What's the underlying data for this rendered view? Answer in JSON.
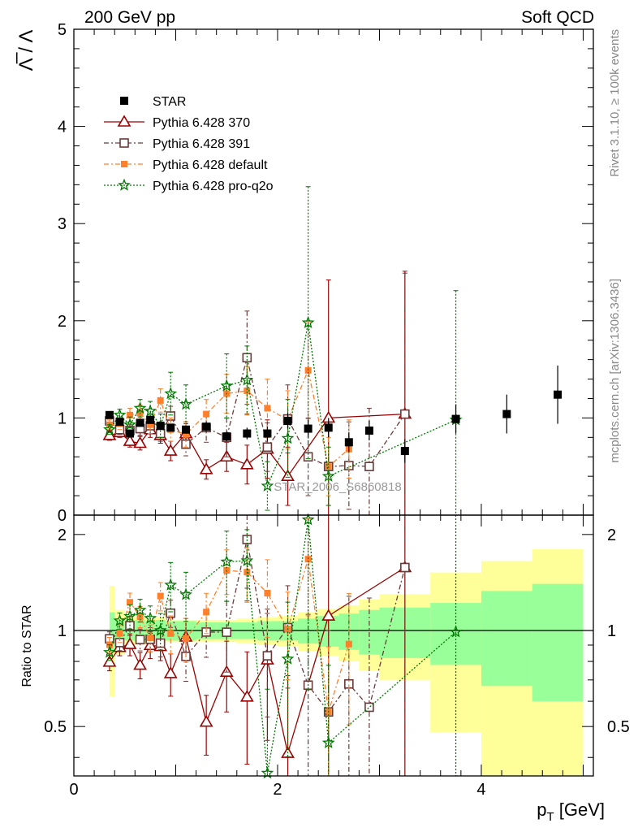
{
  "header": {
    "left_title": "200 GeV pp",
    "right_title": "Soft QCD",
    "side_label_top": "Rivet 3.1.10, ≥ 100k events",
    "side_label_bottom": "mcplots.cern.ch [arXiv:1306.3436]",
    "watermark": "STAR_2006_S6860818"
  },
  "chart_data": {
    "type": "scatter",
    "title": "",
    "ylabel": "Λ̅ / Λ",
    "xlabel": "p_T [GeV]",
    "xlim": [
      0,
      5.1
    ],
    "ylim": [
      0,
      5
    ],
    "x_ticks": [
      "0",
      "2",
      "4"
    ],
    "y_ticks": [
      "0",
      "1",
      "2",
      "3",
      "4",
      "5"
    ],
    "ratio": {
      "ylabel": "Ratio to STAR",
      "ylim": [
        0.35,
        2.3
      ],
      "y_ticks": [
        "0.5",
        "1",
        "2"
      ],
      "band_edges": [
        0.35,
        0.4,
        0.5,
        0.6,
        0.7,
        0.8,
        0.9,
        1.0,
        1.2,
        1.4,
        1.6,
        1.8,
        2.0,
        2.2,
        2.4,
        2.6,
        2.8,
        3.0,
        3.5,
        4.0,
        4.5,
        5.0
      ],
      "band_inner": [
        0.14,
        0.08,
        0.07,
        0.08,
        0.07,
        0.08,
        0.07,
        0.07,
        0.06,
        0.06,
        0.06,
        0.07,
        0.07,
        0.09,
        0.11,
        0.13,
        0.16,
        0.18,
        0.22,
        0.33,
        0.4
      ],
      "band_outer": [
        0.38,
        0.16,
        0.12,
        0.1,
        0.09,
        0.1,
        0.08,
        0.08,
        0.08,
        0.08,
        0.09,
        0.1,
        0.11,
        0.14,
        0.17,
        0.2,
        0.25,
        0.3,
        0.52,
        0.65,
        0.8
      ]
    },
    "series": [
      {
        "name": "STAR",
        "style": "data",
        "color": "#000000",
        "x": [
          0.35,
          0.45,
          0.55,
          0.65,
          0.75,
          0.85,
          0.95,
          1.1,
          1.3,
          1.5,
          1.7,
          1.9,
          2.1,
          2.3,
          2.5,
          2.7,
          2.9,
          3.25,
          3.75,
          4.25,
          4.75
        ],
        "y": [
          1.03,
          0.96,
          0.84,
          0.95,
          0.98,
          0.92,
          0.9,
          0.88,
          0.91,
          0.81,
          0.84,
          0.84,
          0.97,
          0.89,
          0.9,
          0.75,
          0.87,
          0.66,
          0.99,
          1.04,
          1.24
        ],
        "err": [
          0.03,
          0.03,
          0.03,
          0.03,
          0.03,
          0.04,
          0.04,
          0.04,
          0.05,
          0.05,
          0.06,
          0.07,
          0.08,
          0.09,
          0.1,
          0.1,
          0.1,
          0.12,
          0.15,
          0.2,
          0.3
        ]
      },
      {
        "name": "Pythia 6.428 370",
        "style": "tri",
        "color": "#990000",
        "dash": "",
        "x": [
          0.35,
          0.45,
          0.55,
          0.65,
          0.75,
          0.85,
          0.95,
          1.1,
          1.3,
          1.5,
          1.7,
          1.9,
          2.1,
          2.5,
          3.25
        ],
        "y": [
          0.82,
          0.85,
          0.76,
          0.74,
          0.88,
          0.82,
          0.66,
          0.84,
          0.47,
          0.6,
          0.52,
          0.68,
          0.4,
          1.0,
          1.04
        ],
        "err": [
          0.05,
          0.05,
          0.06,
          0.07,
          0.08,
          0.08,
          0.1,
          0.12,
          0.1,
          0.15,
          0.2,
          0.3,
          0.3,
          1.42,
          1.47
        ]
      },
      {
        "name": "Pythia 6.428 391",
        "style": "sq",
        "color": "#6b3a3a",
        "dash": "6,3,2,3",
        "x": [
          0.35,
          0.45,
          0.55,
          0.65,
          0.75,
          0.85,
          0.95,
          1.1,
          1.3,
          1.5,
          1.7,
          1.9,
          2.1,
          2.3,
          2.5,
          2.7,
          2.9,
          3.25
        ],
        "y": [
          0.97,
          0.88,
          0.87,
          0.89,
          0.92,
          0.84,
          1.02,
          0.73,
          0.9,
          0.8,
          1.62,
          0.7,
          0.99,
          0.6,
          0.5,
          0.51,
          0.5,
          1.04
        ],
        "err": [
          0.05,
          0.05,
          0.06,
          0.07,
          0.08,
          0.08,
          0.1,
          0.12,
          0.15,
          0.2,
          0.48,
          0.25,
          0.35,
          0.4,
          0.4,
          0.45,
          0.6,
          1.45
        ]
      },
      {
        "name": "Pythia 6.428 default",
        "style": "fsq",
        "color": "#ff7f2a",
        "dash": "6,3,2,3",
        "x": [
          0.35,
          0.45,
          0.55,
          0.65,
          0.75,
          0.85,
          0.95,
          1.1,
          1.3,
          1.5,
          1.7,
          1.9,
          2.1,
          2.3,
          2.5,
          2.7
        ],
        "y": [
          0.93,
          0.94,
          1.03,
          1.05,
          0.93,
          1.18,
          0.88,
          0.83,
          1.04,
          1.25,
          1.28,
          1.1,
          0.98,
          1.49,
          0.5,
          0.68
        ],
        "err": [
          0.05,
          0.06,
          0.07,
          0.08,
          0.09,
          0.12,
          0.12,
          0.13,
          0.15,
          0.2,
          0.25,
          0.3,
          0.3,
          0.5,
          0.3,
          0.3
        ]
      },
      {
        "name": "Pythia 6.428 pro-q2o",
        "style": "star",
        "color": "#007700",
        "dash": "2,2",
        "x": [
          0.35,
          0.45,
          0.55,
          0.65,
          0.75,
          0.85,
          0.95,
          1.1,
          1.5,
          1.7,
          1.9,
          2.1,
          2.3,
          2.5,
          3.75
        ],
        "y": [
          0.88,
          1.03,
          0.93,
          1.1,
          1.07,
          0.92,
          1.25,
          1.14,
          1.33,
          1.39,
          0.3,
          0.79,
          1.98,
          0.4,
          0.98
        ],
        "err": [
          0.05,
          0.06,
          0.08,
          0.09,
          0.1,
          0.12,
          0.22,
          0.2,
          0.33,
          0.35,
          0.25,
          0.4,
          1.4,
          0.3,
          1.33
        ]
      }
    ]
  }
}
